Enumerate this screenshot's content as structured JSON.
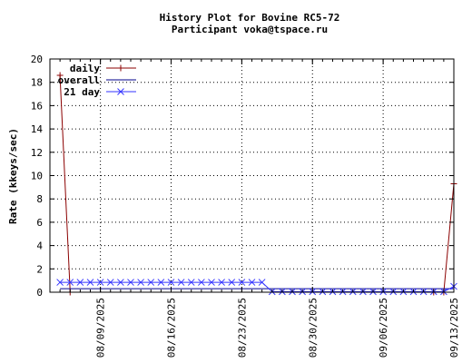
{
  "chart_data": {
    "type": "line",
    "title": "History Plot for Bovine RC5-72",
    "subtitle": "Participant voka@tspace.ru",
    "ylabel": "Rate (kkeys/sec)",
    "xlabel": "",
    "x_ticks": [
      "08/09/2025",
      "08/16/2025",
      "08/23/2025",
      "08/30/2025",
      "09/06/2025",
      "09/13/2025"
    ],
    "x_range": [
      "2025-08-04",
      "2025-09-13"
    ],
    "ylim": [
      0,
      20
    ],
    "y_ticks": [
      0,
      2,
      4,
      6,
      8,
      10,
      12,
      14,
      16,
      18,
      20
    ],
    "grid": true,
    "legend_position": "top-left",
    "series": [
      {
        "name": "daily",
        "color": "#8b0000",
        "marker": "plus",
        "points": [
          [
            "2025-08-05",
            18.6
          ],
          [
            "2025-08-06",
            0
          ],
          [
            "2025-09-11",
            0
          ],
          [
            "2025-09-12",
            0
          ],
          [
            "2025-09-13",
            9.3
          ]
        ]
      },
      {
        "name": "overall",
        "color": "#00008b",
        "marker": "none",
        "points": [
          [
            "2025-08-05",
            0.3
          ],
          [
            "2025-09-13",
            0.3
          ]
        ]
      },
      {
        "name": "21 day",
        "color": "#3333ff",
        "marker": "x",
        "points": [
          [
            "2025-08-05",
            0.85
          ],
          [
            "2025-08-06",
            0.85
          ],
          [
            "2025-08-07",
            0.85
          ],
          [
            "2025-08-08",
            0.85
          ],
          [
            "2025-08-09",
            0.85
          ],
          [
            "2025-08-10",
            0.85
          ],
          [
            "2025-08-11",
            0.85
          ],
          [
            "2025-08-12",
            0.85
          ],
          [
            "2025-08-13",
            0.85
          ],
          [
            "2025-08-14",
            0.85
          ],
          [
            "2025-08-15",
            0.85
          ],
          [
            "2025-08-16",
            0.85
          ],
          [
            "2025-08-17",
            0.85
          ],
          [
            "2025-08-18",
            0.85
          ],
          [
            "2025-08-19",
            0.85
          ],
          [
            "2025-08-20",
            0.85
          ],
          [
            "2025-08-21",
            0.85
          ],
          [
            "2025-08-22",
            0.85
          ],
          [
            "2025-08-23",
            0.85
          ],
          [
            "2025-08-24",
            0.85
          ],
          [
            "2025-08-25",
            0.85
          ],
          [
            "2025-08-26",
            0.05
          ],
          [
            "2025-08-27",
            0.05
          ],
          [
            "2025-08-28",
            0.05
          ],
          [
            "2025-08-29",
            0.05
          ],
          [
            "2025-08-30",
            0.05
          ],
          [
            "2025-08-31",
            0.05
          ],
          [
            "2025-09-01",
            0.05
          ],
          [
            "2025-09-02",
            0.05
          ],
          [
            "2025-09-03",
            0.05
          ],
          [
            "2025-09-04",
            0.05
          ],
          [
            "2025-09-05",
            0.05
          ],
          [
            "2025-09-06",
            0.05
          ],
          [
            "2025-09-07",
            0.05
          ],
          [
            "2025-09-08",
            0.05
          ],
          [
            "2025-09-09",
            0.05
          ],
          [
            "2025-09-10",
            0.05
          ],
          [
            "2025-09-11",
            0.05
          ],
          [
            "2025-09-12",
            0.05
          ],
          [
            "2025-09-13",
            0.5
          ]
        ]
      }
    ]
  }
}
